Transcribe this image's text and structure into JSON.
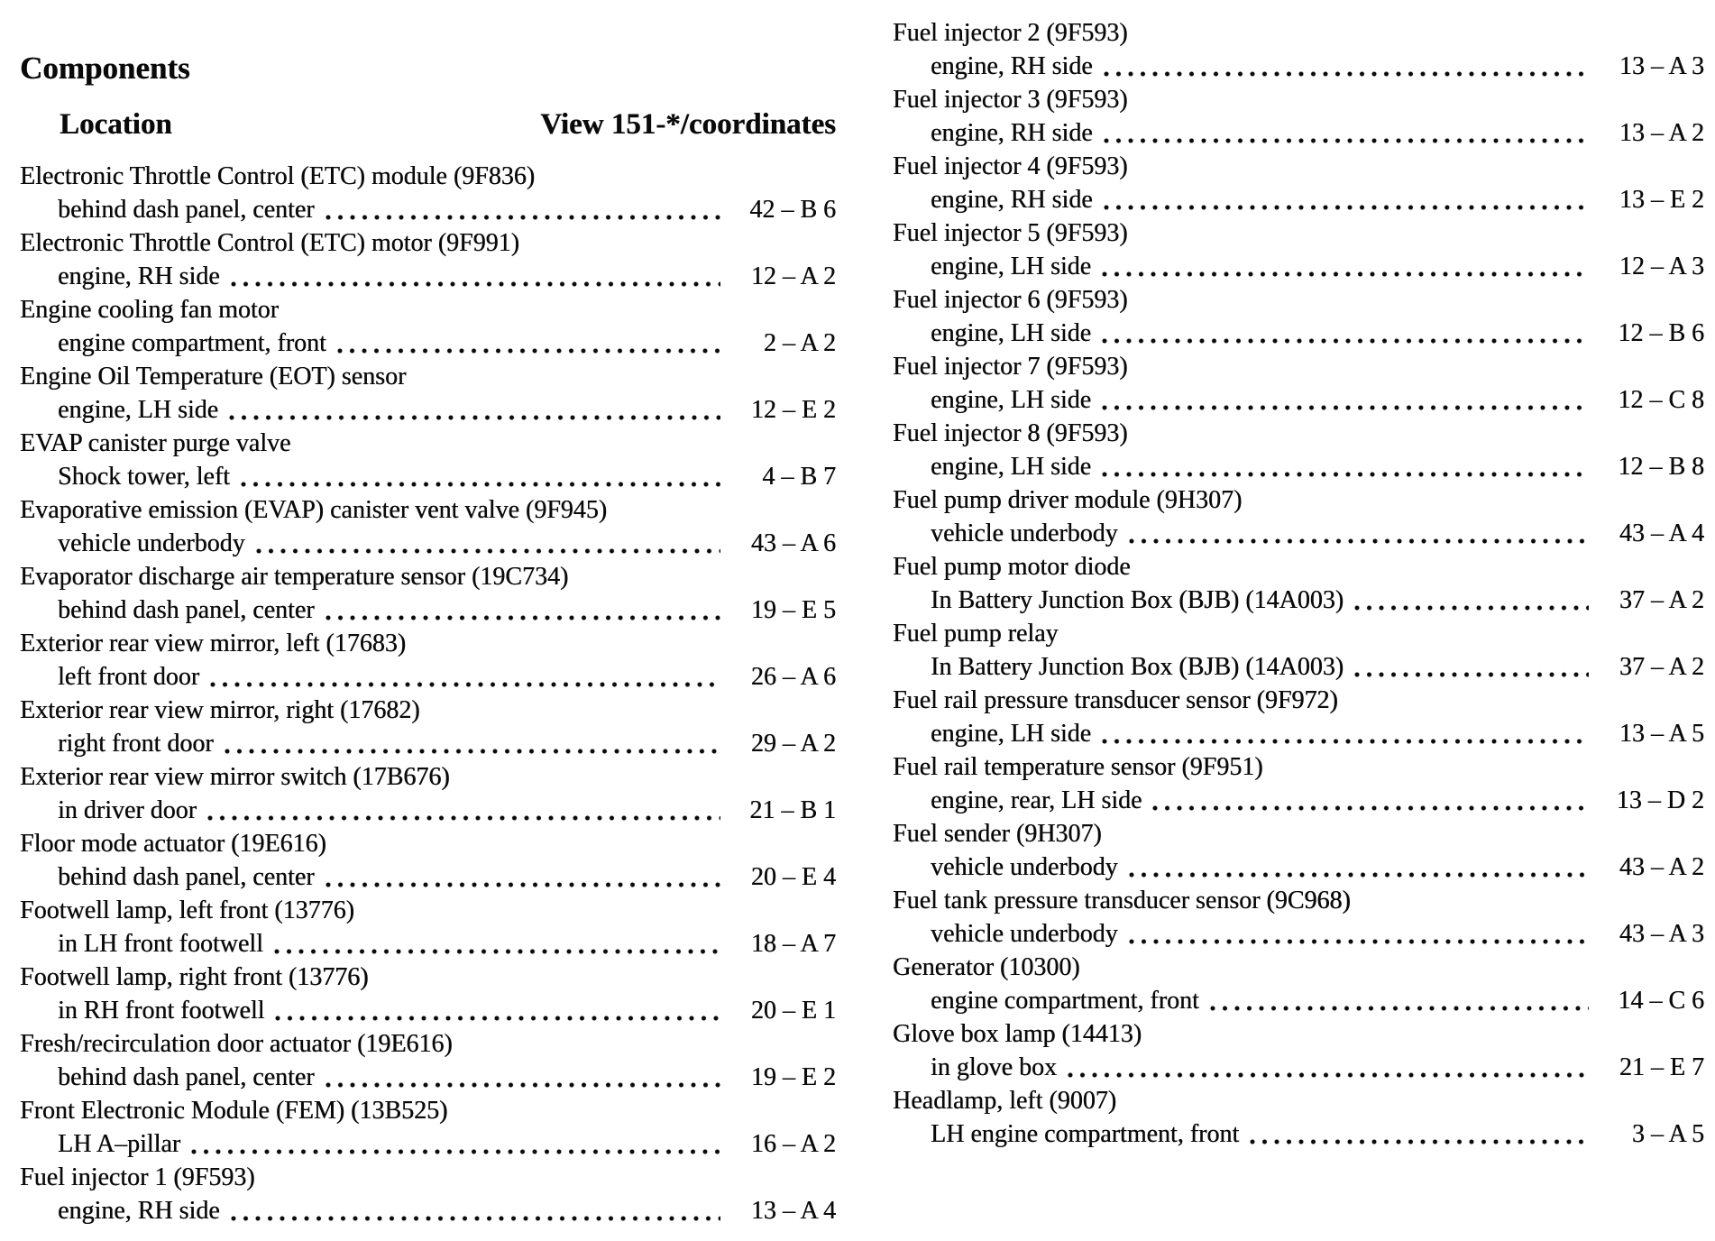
{
  "page": {
    "background": "#ffffff",
    "text_color": "#0a0a0a",
    "header": {
      "title": "Components",
      "location_label": "Location",
      "view_label": "View 151-*/coordinates"
    },
    "columns": [
      {
        "entries": [
          {
            "name": "Electronic Throttle Control (ETC) module (9F836)",
            "location": "behind dash panel, center",
            "coord": "42 – B 6"
          },
          {
            "name": "Electronic Throttle Control (ETC) motor (9F991)",
            "location": "engine, RH side",
            "coord": "12 – A 2"
          },
          {
            "name": "Engine cooling fan motor",
            "location": "engine compartment, front",
            "coord": "2 – A 2"
          },
          {
            "name": "Engine Oil Temperature (EOT) sensor",
            "location": "engine, LH side",
            "coord": "12 – E 2"
          },
          {
            "name": "EVAP canister purge valve",
            "location": "Shock tower, left",
            "coord": "4 – B 7"
          },
          {
            "name": "Evaporative emission (EVAP) canister vent valve (9F945)",
            "location": "vehicle underbody",
            "coord": "43 – A 6"
          },
          {
            "name": "Evaporator discharge air temperature sensor (19C734)",
            "location": "behind dash panel, center",
            "coord": "19 – E 5"
          },
          {
            "name": "Exterior rear view mirror, left (17683)",
            "location": "left front door",
            "coord": "26 – A 6"
          },
          {
            "name": "Exterior rear view mirror, right (17682)",
            "location": "right front door",
            "coord": "29 – A 2"
          },
          {
            "name": "Exterior rear view mirror switch (17B676)",
            "location": "in driver door",
            "coord": "21 – B 1"
          },
          {
            "name": "Floor mode actuator (19E616)",
            "location": "behind dash panel, center",
            "coord": "20 – E 4"
          },
          {
            "name": "Footwell lamp, left front (13776)",
            "location": "in LH front footwell",
            "coord": "18 – A 7"
          },
          {
            "name": "Footwell lamp, right front (13776)",
            "location": "in RH front footwell",
            "coord": "20 – E 1"
          },
          {
            "name": "Fresh/recirculation door actuator (19E616)",
            "location": "behind dash panel, center",
            "coord": "19 – E 2"
          },
          {
            "name": "Front Electronic Module (FEM) (13B525)",
            "location": "LH A–pillar",
            "coord": "16 – A 2"
          },
          {
            "name": "Fuel injector 1 (9F593)",
            "location": "engine, RH side",
            "coord": "13 – A 4"
          }
        ]
      },
      {
        "entries": [
          {
            "name": "Fuel injector 2 (9F593)",
            "location": "engine, RH side",
            "coord": "13 – A 3"
          },
          {
            "name": "Fuel injector 3 (9F593)",
            "location": "engine, RH side",
            "coord": "13 – A 2"
          },
          {
            "name": "Fuel injector 4 (9F593)",
            "location": "engine, RH side",
            "coord": "13 – E 2"
          },
          {
            "name": "Fuel injector 5 (9F593)",
            "location": "engine, LH side",
            "coord": "12 – A 3"
          },
          {
            "name": "Fuel injector 6 (9F593)",
            "location": "engine, LH side",
            "coord": "12 – B 6"
          },
          {
            "name": "Fuel injector 7 (9F593)",
            "location": "engine, LH side",
            "coord": "12 – C 8"
          },
          {
            "name": "Fuel injector 8 (9F593)",
            "location": "engine, LH side",
            "coord": "12 – B 8"
          },
          {
            "name": "Fuel pump driver module (9H307)",
            "location": "vehicle underbody",
            "coord": "43 – A 4"
          },
          {
            "name": "Fuel pump motor diode",
            "location": "In Battery Junction Box (BJB) (14A003)",
            "coord": "37 – A 2"
          },
          {
            "name": "Fuel pump relay",
            "location": "In Battery Junction Box (BJB) (14A003)",
            "coord": "37 – A 2"
          },
          {
            "name": "Fuel rail pressure transducer sensor (9F972)",
            "location": "engine, LH side",
            "coord": "13 – A 5"
          },
          {
            "name": "Fuel rail temperature sensor (9F951)",
            "location": "engine, rear, LH side",
            "coord": "13 – D 2"
          },
          {
            "name": "Fuel sender (9H307)",
            "location": "vehicle underbody",
            "coord": "43 – A 2"
          },
          {
            "name": "Fuel tank pressure transducer sensor (9C968)",
            "location": "vehicle underbody",
            "coord": "43 – A 3"
          },
          {
            "name": "Generator (10300)",
            "location": "engine compartment, front",
            "coord": "14 – C 6"
          },
          {
            "name": "Glove box lamp (14413)",
            "location": "in glove box",
            "coord": "21 – E 7"
          },
          {
            "name": "Headlamp, left (9007)",
            "location": "LH engine compartment, front",
            "coord": "3 – A 5"
          }
        ]
      }
    ]
  }
}
